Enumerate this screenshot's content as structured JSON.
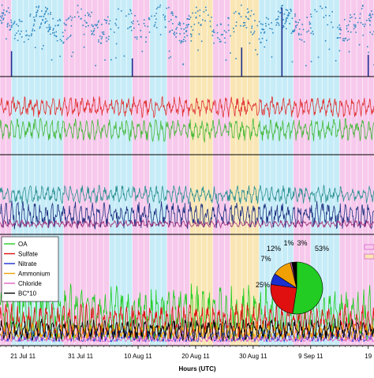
{
  "figure": {
    "x_axis": {
      "title": "Hours (UTC)",
      "ticks": [
        {
          "date": "2011-07-21",
          "label": "21 Jul 11"
        },
        {
          "date": "2011-07-31",
          "label": "31 Jul 11"
        },
        {
          "date": "2011-08-10",
          "label": "10 Aug 11"
        },
        {
          "date": "2011-08-20",
          "label": "20 Aug 11"
        },
        {
          "date": "2011-08-30",
          "label": "30 Aug 11"
        },
        {
          "date": "2011-09-09",
          "label": "9 Sep 11"
        },
        {
          "date": "2011-09-19",
          "label": "19"
        }
      ],
      "range": [
        "2011-07-17",
        "2011-09-20"
      ]
    },
    "background_shading": [
      {
        "type": "pink",
        "start": "2011-07-17",
        "end": "2011-07-19"
      },
      {
        "type": "lightblue",
        "start": "2011-07-19",
        "end": "2011-07-28"
      },
      {
        "type": "pink",
        "start": "2011-07-28",
        "end": "2011-08-05"
      },
      {
        "type": "lightblue",
        "start": "2011-08-05",
        "end": "2011-08-09"
      },
      {
        "type": "pink",
        "start": "2011-08-09",
        "end": "2011-08-12"
      },
      {
        "type": "lightblue",
        "start": "2011-08-12",
        "end": "2011-08-15"
      },
      {
        "type": "pink",
        "start": "2011-08-15",
        "end": "2011-08-19"
      },
      {
        "type": "yellow",
        "start": "2011-08-19",
        "end": "2011-08-23"
      },
      {
        "type": "pink",
        "start": "2011-08-23",
        "end": "2011-08-26"
      },
      {
        "type": "yellow",
        "start": "2011-08-26",
        "end": "2011-08-31"
      },
      {
        "type": "lightblue",
        "start": "2011-08-31",
        "end": "2011-09-06"
      },
      {
        "type": "pink",
        "start": "2011-09-06",
        "end": "2011-09-09"
      },
      {
        "type": "lightblue",
        "start": "2011-09-09",
        "end": "2011-09-14"
      },
      {
        "type": "pink",
        "start": "2011-09-14",
        "end": "2011-09-20"
      }
    ],
    "shade_colors": {
      "pink": "#f7c9ec",
      "lightblue": "#c6ecf8",
      "yellow": "#f9e6b4"
    },
    "legend_right_colors": [
      "#f7c9ec",
      "#f9e6b4"
    ]
  },
  "chart_data": [
    {
      "type": "scatter",
      "panel": "top",
      "description_series": [
        {
          "color": "#2e86c1",
          "kind": "points",
          "baseline": 0.72,
          "amplitude": 0.18
        },
        {
          "color": "#1f2f8f",
          "kind": "spikes",
          "x": [
            "2011-07-19",
            "2011-08-09",
            "2011-08-28",
            "2011-09-04",
            "2011-09-19"
          ],
          "values": [
            0.35,
            0.25,
            0.4,
            0.95,
            0.3
          ]
        }
      ],
      "ylim": [
        0,
        1
      ]
    },
    {
      "type": "line",
      "panel": "second",
      "series": [
        {
          "color": "#e03030",
          "mean": 0.62,
          "amplitude": 0.14
        },
        {
          "color": "#44b838",
          "mean": 0.3,
          "amplitude": 0.15
        }
      ],
      "ylim": [
        0,
        1
      ]
    },
    {
      "type": "line",
      "panel": "third",
      "series": [
        {
          "color": "#2a9090",
          "mean": 0.5,
          "amplitude": 0.12
        },
        {
          "color": "#1c2f80",
          "mean": 0.22,
          "amplitude": 0.18
        },
        {
          "color": "#a0307a",
          "mean": 0.1,
          "amplitude": 0.05
        }
      ],
      "ylim": [
        0,
        1
      ]
    },
    {
      "type": "line",
      "panel": "bottom",
      "legend": [
        "OA",
        "Sulfate",
        "Nitrate",
        "Ammonium",
        "Chloride",
        "BC*10"
      ],
      "series": [
        {
          "name": "OA",
          "color": "#22cc22",
          "mean": 0.28,
          "amplitude": 0.26
        },
        {
          "name": "Sulfate",
          "color": "#e01010",
          "mean": 0.2,
          "amplitude": 0.16
        },
        {
          "name": "Nitrate",
          "color": "#1a2fcf",
          "mean": 0.06,
          "amplitude": 0.06
        },
        {
          "name": "Ammonium",
          "color": "#f0a000",
          "mean": 0.1,
          "amplitude": 0.08
        },
        {
          "name": "Chloride",
          "color": "#e060c0",
          "mean": 0.03,
          "amplitude": 0.03
        },
        {
          "name": "BC*10",
          "color": "#000000",
          "mean": 0.12,
          "amplitude": 0.1
        }
      ],
      "ylim": [
        0,
        1
      ]
    },
    {
      "type": "pie",
      "panel": "bottom-inset",
      "slices": [
        {
          "name": "OA",
          "value": 53,
          "label": "53%",
          "color": "#22cc22"
        },
        {
          "name": "Sulfate",
          "value": 25,
          "label": "25%",
          "color": "#e01010"
        },
        {
          "name": "Nitrate",
          "value": 7,
          "label": "7%",
          "color": "#1a2fcf"
        },
        {
          "name": "Ammonium",
          "value": 12,
          "label": "12%",
          "color": "#f0a000"
        },
        {
          "name": "Chloride",
          "value": 1,
          "label": "1%",
          "color": "#e060c0"
        },
        {
          "name": "BC*10",
          "value": 3,
          "label": "3%",
          "color": "#000000"
        }
      ]
    }
  ]
}
